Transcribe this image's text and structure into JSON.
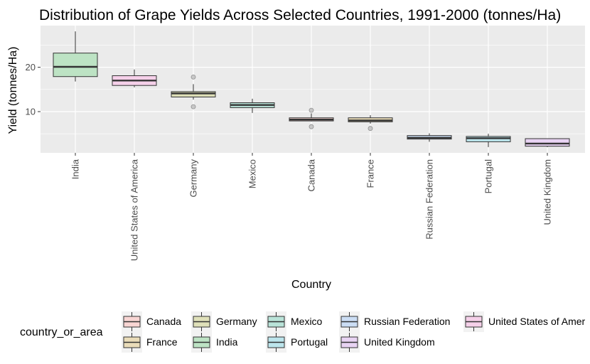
{
  "chart_data": {
    "type": "boxplot",
    "title": "Distribution of Grape Yields Across Selected Countries, 1991-2000 (tonnes/Ha)",
    "xlabel": "Country",
    "ylabel": "Yield (tonnes/Ha)",
    "y_ticks": [
      10,
      20
    ],
    "y_tick_labels": [
      "10",
      "20"
    ],
    "ylim": [
      0.7,
      29.4
    ],
    "grid": true,
    "legend_title": "country_or_area",
    "legend_position": "bottom",
    "categories": [
      "India",
      "United States of America",
      "Germany",
      "Mexico",
      "Canada",
      "France",
      "Russian Federation",
      "Portugal",
      "United Kingdom"
    ],
    "boxes": [
      {
        "category": "India",
        "whisker_low": 16.8,
        "q1": 17.9,
        "median": 20.1,
        "q3": 23.2,
        "whisker_high": 28.1,
        "outliers": []
      },
      {
        "category": "United States of America",
        "whisker_low": 15.5,
        "q1": 15.9,
        "median": 17.0,
        "q3": 18.1,
        "whisker_high": 19.5,
        "outliers": []
      },
      {
        "category": "Germany",
        "whisker_low": 12.7,
        "q1": 13.3,
        "median": 14.1,
        "q3": 14.5,
        "whisker_high": 16.2,
        "outliers": [
          17.8,
          11.1
        ]
      },
      {
        "category": "Mexico",
        "whisker_low": 9.7,
        "q1": 10.9,
        "median": 11.5,
        "q3": 12.0,
        "whisker_high": 12.9,
        "outliers": []
      },
      {
        "category": "Canada",
        "whisker_low": 7.8,
        "q1": 7.9,
        "median": 8.2,
        "q3": 8.6,
        "whisker_high": 9.6,
        "outliers": [
          10.3,
          6.6
        ]
      },
      {
        "category": "France",
        "whisker_low": 7.3,
        "q1": 7.7,
        "median": 8.0,
        "q3": 8.6,
        "whisker_high": 9.2,
        "outliers": [
          6.2
        ]
      },
      {
        "category": "Russian Federation",
        "whisker_low": 3.2,
        "q1": 3.8,
        "median": 4.1,
        "q3": 4.6,
        "whisker_high": 5.1,
        "outliers": []
      },
      {
        "category": "Portugal",
        "whisker_low": 2.0,
        "q1": 3.2,
        "median": 4.0,
        "q3": 4.4,
        "whisker_high": 5.0,
        "outliers": []
      },
      {
        "category": "United Kingdom",
        "whisker_low": 2.0,
        "q1": 2.2,
        "median": 2.8,
        "q3": 3.9,
        "whisker_high": 3.9,
        "outliers": []
      }
    ],
    "colors": {
      "Canada": "#f8d5d3",
      "France": "#eadcb9",
      "Germany": "#dfe0b9",
      "India": "#bde3c4",
      "Mexico": "#b9e3d8",
      "Portugal": "#bce5ec",
      "Russian Federation": "#cbddf4",
      "United Kingdom": "#e8d3f3",
      "United States of America": "#f5d0e9"
    },
    "legend_entries": [
      "Canada",
      "Germany",
      "Mexico",
      "Russian Federation",
      "United States of America",
      "France",
      "India",
      "Portugal",
      "United Kingdom"
    ],
    "legend_labels": [
      "Canada",
      "Germany",
      "Mexico",
      "Russian Federation",
      "United States of Amer",
      "France",
      "India",
      "Portugal",
      "United Kingdom"
    ]
  }
}
